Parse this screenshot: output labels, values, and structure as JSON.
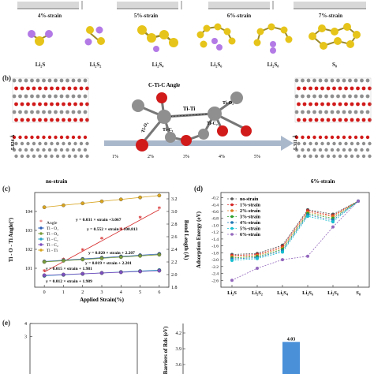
{
  "panel_a": {
    "strain_labels": [
      "4%-strain",
      "5%-strain",
      "6%-strain",
      "7%-strain"
    ],
    "molecules": [
      "Li₂S",
      "Li₂S₂",
      "Li₂S₄",
      "Li₂S₆",
      "Li₂S₈",
      "S₈"
    ]
  },
  "panel_b": {
    "tag": "(b)",
    "left_dim": "5.824 Å",
    "right_dim": "5.311 Å",
    "no_strain": "no-strain",
    "six_strain": "6%-strain",
    "arrow_ticks": [
      "1%",
      "2%",
      "3%",
      "4%",
      "5%"
    ],
    "bond_labels": {
      "angle": "C-Ti-C Angle",
      "titi": "Ti-Ti",
      "tio1": "Ti-O₁",
      "tic1": "Ti-C₁",
      "tio2": "Ti-O₂",
      "tic2": "Ti-C₂"
    }
  },
  "panel_c": {
    "tag": "(c)"
  },
  "panel_d": {
    "tag": "(d)"
  },
  "panel_e": {
    "tag": "(e)"
  },
  "colors": {
    "sulfur": "#e6c419",
    "lithium": "#b37ae6",
    "titanium": "#8f8f8f",
    "oxygen": "#d11a1a",
    "arrow": "#aab8cc"
  },
  "chart_data": [
    {
      "type": "scatter",
      "panel": "c",
      "xlabel": "Applied Strain(%)",
      "ylabel": "Ti - O - Ti Angle(°)",
      "y2label": "Bond Length (Å)",
      "xlim": [
        -0.5,
        6.5
      ],
      "ylim": [
        100,
        105
      ],
      "y2lim": [
        1.8,
        3.3
      ],
      "x": [
        0,
        1,
        2,
        3,
        4,
        5,
        6
      ],
      "xticks": [
        0,
        1,
        2,
        3,
        4,
        5,
        6
      ],
      "yticks": [
        101,
        102,
        103,
        104
      ],
      "y2ticks": [
        1.8,
        2.0,
        2.2,
        2.4,
        2.6,
        2.8,
        3.0,
        3.2
      ],
      "legend": [
        "Angle",
        "Ti - O₁",
        "Ti - O₂",
        "Ti - C₁",
        "Ti - C₂",
        "Ti - Ti"
      ],
      "equations": [
        "y = 0.031 × strain +3.067",
        "y = 0.552 × strain + 100.813",
        "y = 0.020 × strain + 2.207",
        "y = 0.019 × strain + 2.201",
        "y = 0.015 × strain + 1.981",
        "y = 0.012 × strain + 1.989"
      ],
      "series": [
        {
          "name": "Angle",
          "axis": "left",
          "color": "#d62728",
          "marker": "star",
          "values": [
            100.8,
            101.4,
            101.9,
            102.5,
            103.0,
            103.6,
            104.1
          ]
        },
        {
          "name": "Ti - Ti",
          "axis": "right",
          "color": "#d9a520",
          "marker": "circle",
          "values": [
            3.067,
            3.098,
            3.129,
            3.16,
            3.191,
            3.222,
            3.253
          ]
        },
        {
          "name": "Ti - O₁",
          "axis": "right",
          "color": "#2e5fb8",
          "marker": "circle",
          "values": [
            2.207,
            2.227,
            2.247,
            2.267,
            2.287,
            2.307,
            2.327
          ]
        },
        {
          "name": "Ti - O₂",
          "axis": "right",
          "color": "#7a9c3a",
          "marker": "circle",
          "values": [
            2.201,
            2.22,
            2.239,
            2.258,
            2.277,
            2.296,
            2.315
          ]
        },
        {
          "name": "Ti - C₁",
          "axis": "right",
          "color": "#2aa6c4",
          "marker": "circle",
          "values": [
            1.981,
            1.996,
            2.011,
            2.026,
            2.041,
            2.056,
            2.071
          ]
        },
        {
          "name": "Ti - C₂",
          "axis": "right",
          "color": "#7d4fbf",
          "marker": "circle",
          "values": [
            1.989,
            2.001,
            2.013,
            2.025,
            2.037,
            2.049,
            2.061
          ]
        }
      ]
    },
    {
      "type": "line",
      "panel": "d",
      "ylabel": "Adsorption Energy (eV)",
      "ylim": [
        -2.8,
        -0.05
      ],
      "yticks": [
        -2.6,
        -2.4,
        -2.2,
        -2.0,
        -1.8,
        -1.6,
        -1.4,
        -1.2,
        -1.0,
        -0.8,
        -0.6,
        -0.4,
        -0.2
      ],
      "categories": [
        "Li₂S",
        "Li₂S₂",
        "Li₂S₄",
        "Li₂S₆",
        "Li₂S₈",
        "S₈"
      ],
      "legend_position": "top-left",
      "series": [
        {
          "name": "no-strain",
          "color": "#555555",
          "values": [
            -1.85,
            -1.82,
            -1.58,
            -0.55,
            -0.68,
            -0.3
          ]
        },
        {
          "name": "1%-strain",
          "color": "#d62728",
          "values": [
            -1.88,
            -1.85,
            -1.62,
            -0.58,
            -0.72,
            -0.3
          ]
        },
        {
          "name": "2%-strain",
          "color": "#e07b20",
          "values": [
            -1.91,
            -1.88,
            -1.66,
            -0.62,
            -0.75,
            -0.3
          ]
        },
        {
          "name": "3%-strain",
          "color": "#2ca02c",
          "values": [
            -1.95,
            -1.91,
            -1.7,
            -0.66,
            -0.8,
            -0.3
          ]
        },
        {
          "name": "4%-strain",
          "color": "#1f77b4",
          "values": [
            -1.98,
            -1.94,
            -1.74,
            -0.7,
            -0.85,
            -0.3
          ]
        },
        {
          "name": "5%-strain",
          "color": "#17becf",
          "values": [
            -2.02,
            -1.97,
            -1.78,
            -0.74,
            -0.9,
            -0.3
          ]
        },
        {
          "name": "6%-strain",
          "color": "#9467bd",
          "values": [
            -2.6,
            -2.25,
            -2.0,
            -1.9,
            -1.05,
            -0.3
          ]
        }
      ]
    },
    {
      "type": "bar",
      "panel": "e",
      "ylabel": "Barriers of Rds (eV)",
      "ylim": [
        0,
        4.6
      ],
      "yticks": [
        3,
        4
      ],
      "y2ticks": [
        3.6,
        3.9,
        4.2
      ],
      "values": [
        4.03
      ],
      "data_labels": [
        "4.03"
      ],
      "color": "#4a90d9"
    }
  ]
}
